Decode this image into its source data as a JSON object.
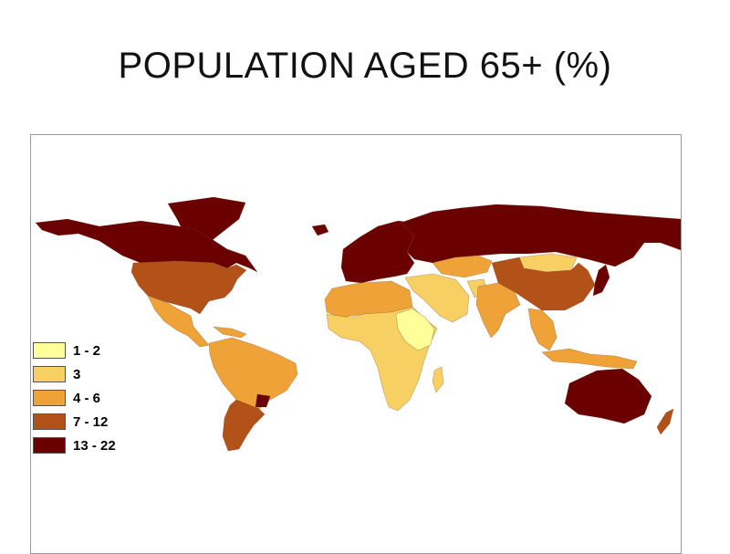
{
  "title": "POPULATION AGED 65+ (%)",
  "map": {
    "legend": [
      {
        "label": "1 - 2",
        "color": "#ffff99"
      },
      {
        "label": "3",
        "color": "#f8cf62"
      },
      {
        "label": "4 - 6",
        "color": "#eea237"
      },
      {
        "label": "7 - 12",
        "color": "#b25218"
      },
      {
        "label": "13 - 22",
        "color": "#6b0000"
      }
    ],
    "regions": [
      {
        "name": "Canada",
        "class": "13 - 22"
      },
      {
        "name": "United States",
        "class": "7 - 12"
      },
      {
        "name": "Mexico and Central America",
        "class": "4 - 6"
      },
      {
        "name": "South America",
        "class": "4 - 6"
      },
      {
        "name": "Argentina",
        "class": "7 - 12"
      },
      {
        "name": "Uruguay",
        "class": "13 - 22"
      },
      {
        "name": "Europe",
        "class": "13 - 22"
      },
      {
        "name": "Russia",
        "class": "13 - 22"
      },
      {
        "name": "Central Asia",
        "class": "4 - 6"
      },
      {
        "name": "Mongolia",
        "class": "3"
      },
      {
        "name": "China",
        "class": "7 - 12"
      },
      {
        "name": "Japan",
        "class": "13 - 22"
      },
      {
        "name": "North Africa",
        "class": "4 - 6"
      },
      {
        "name": "Sub-Saharan Africa",
        "class": "3"
      },
      {
        "name": "Sudan / Ethiopia region",
        "class": "1 - 2"
      },
      {
        "name": "Middle East",
        "class": "3"
      },
      {
        "name": "India",
        "class": "4 - 6"
      },
      {
        "name": "Southeast Asia",
        "class": "4 - 6"
      },
      {
        "name": "Australia",
        "class": "13 - 22"
      },
      {
        "name": "New Zealand",
        "class": "7 - 12"
      }
    ]
  }
}
